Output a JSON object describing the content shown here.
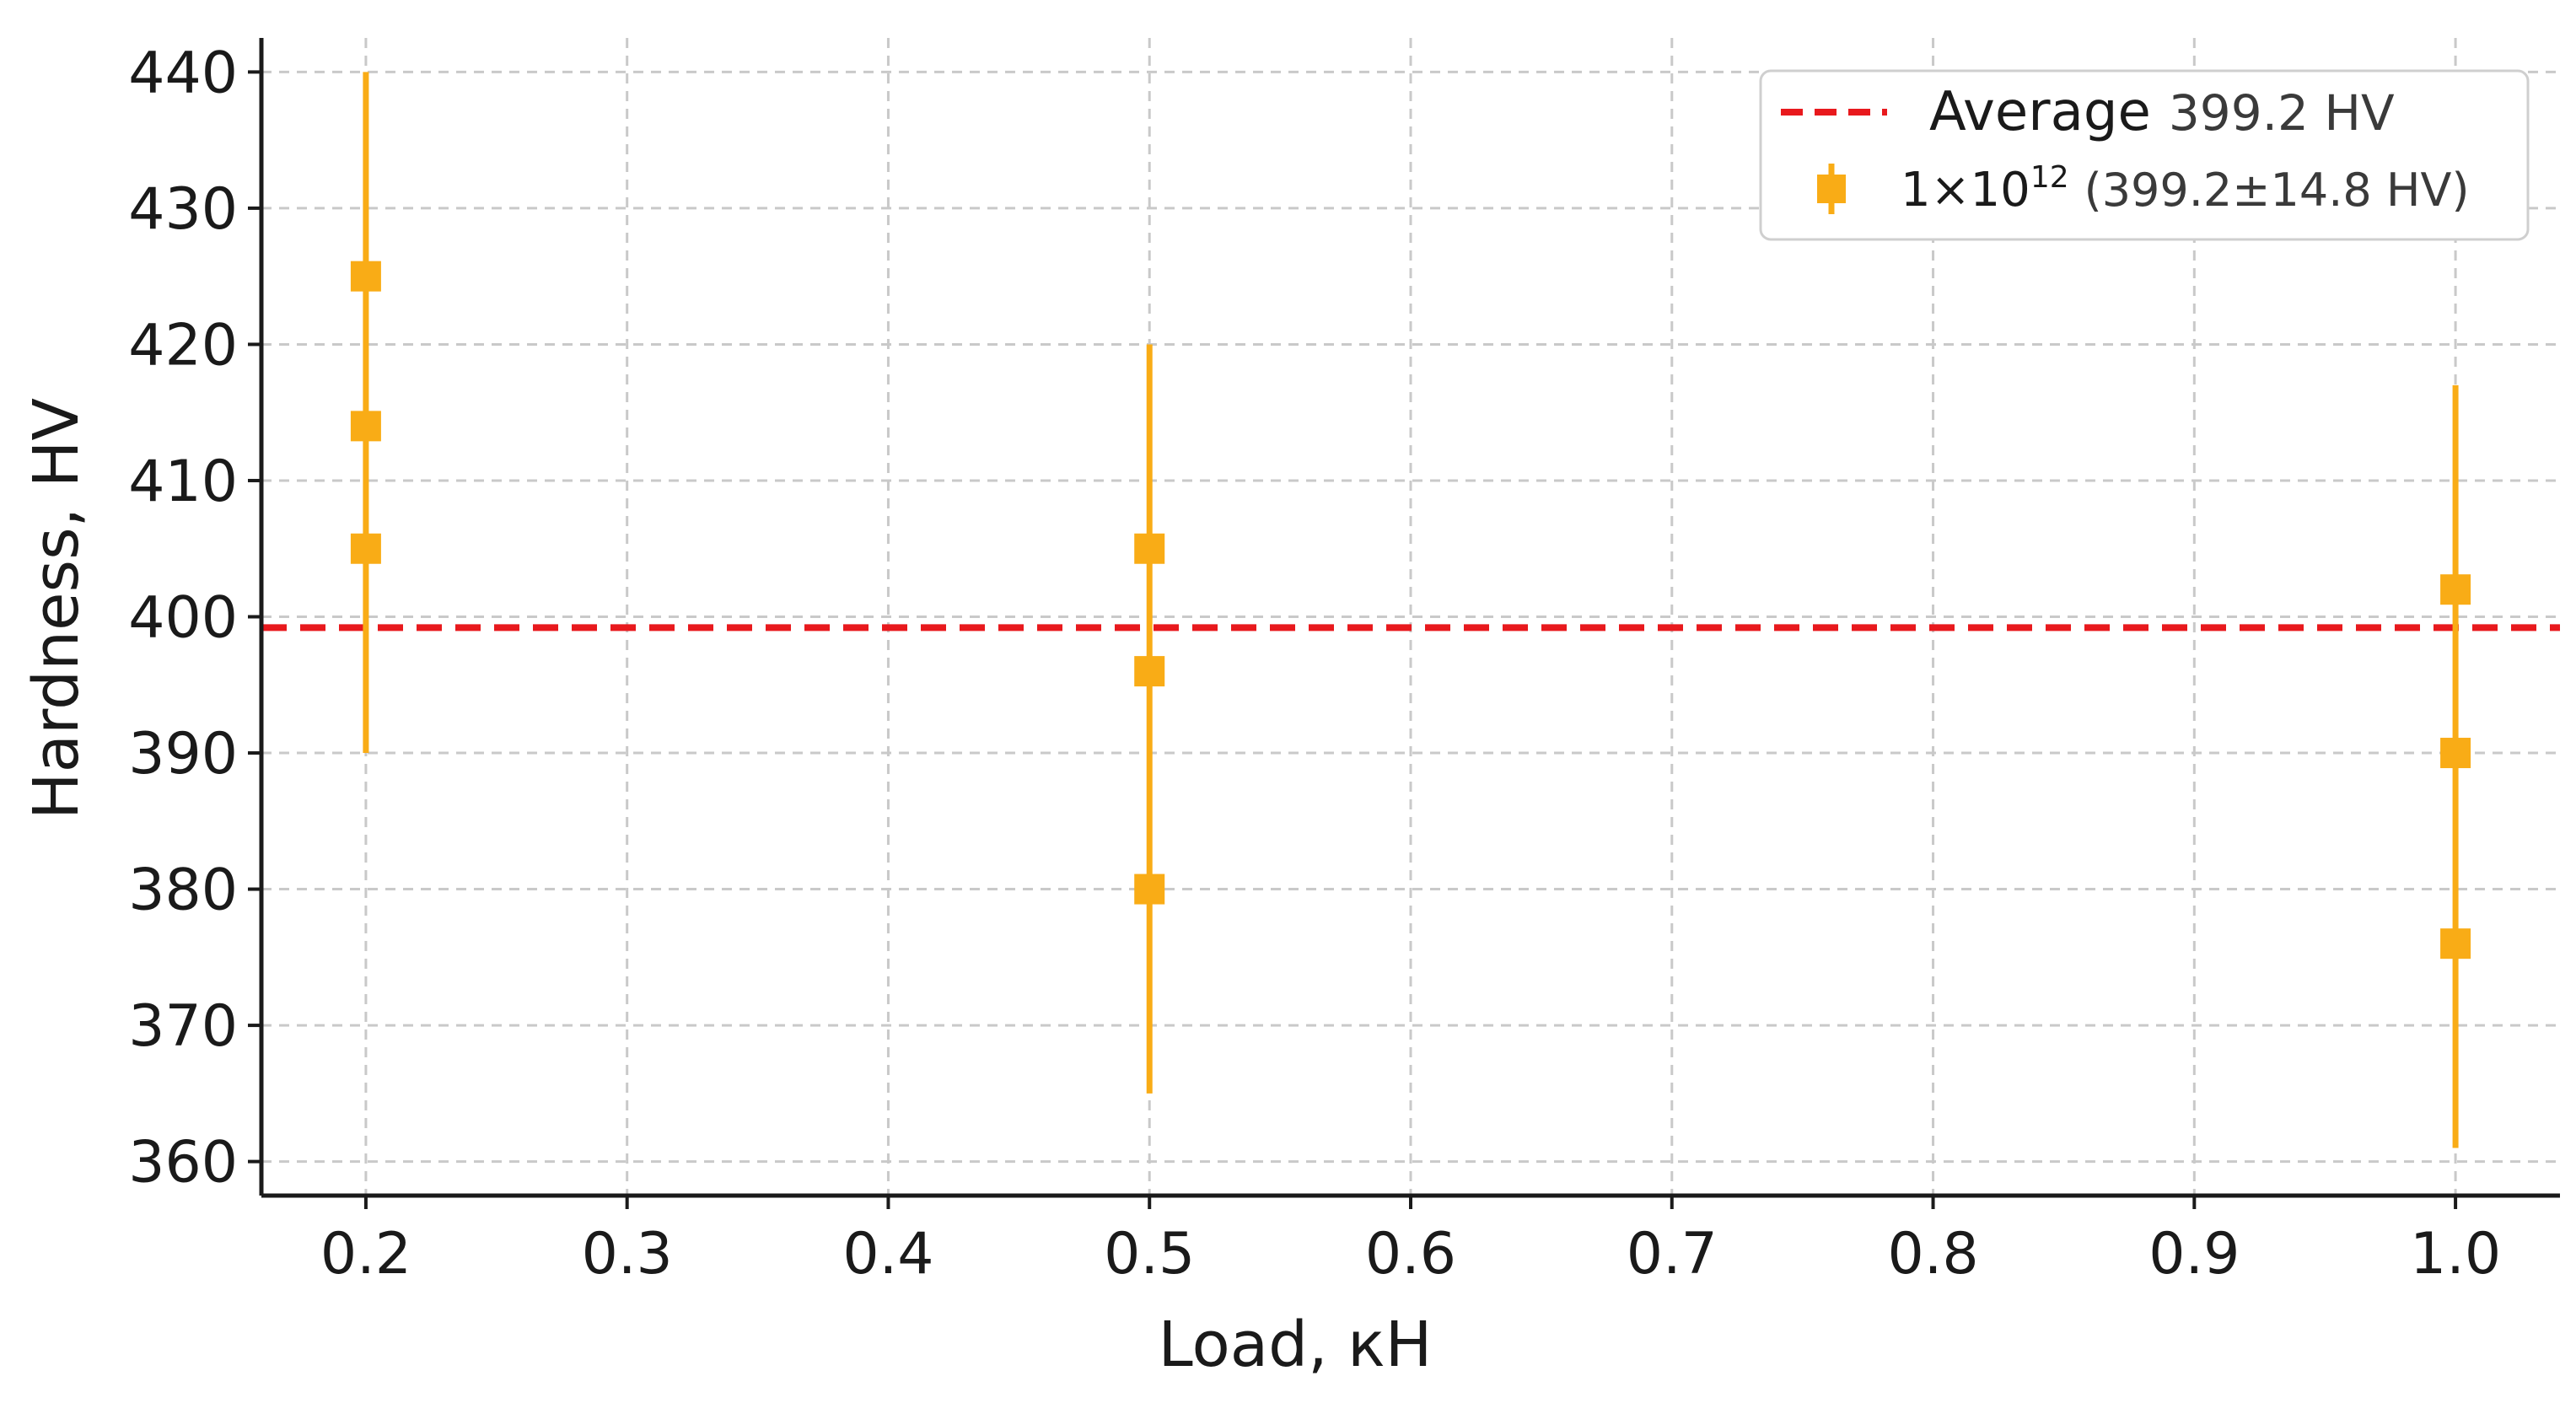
{
  "chart_data": {
    "type": "scatter",
    "xlabel": "Load, кН",
    "ylabel": "Hardness, HV",
    "xlim": [
      0.16,
      1.04
    ],
    "ylim": [
      357.5,
      442.5
    ],
    "x_ticks": [
      {
        "value": 0.2,
        "label": "0.2"
      },
      {
        "value": 0.3,
        "label": "0.3"
      },
      {
        "value": 0.4,
        "label": "0.4"
      },
      {
        "value": 0.5,
        "label": "0.5"
      },
      {
        "value": 0.6,
        "label": "0.6"
      },
      {
        "value": 0.7,
        "label": "0.7"
      },
      {
        "value": 0.8,
        "label": "0.8"
      },
      {
        "value": 0.9,
        "label": "0.9"
      },
      {
        "value": 1.0,
        "label": "1.0"
      }
    ],
    "y_ticks": [
      {
        "value": 360,
        "label": "360"
      },
      {
        "value": 370,
        "label": "370"
      },
      {
        "value": 380,
        "label": "380"
      },
      {
        "value": 390,
        "label": "390"
      },
      {
        "value": 400,
        "label": "400"
      },
      {
        "value": 410,
        "label": "410"
      },
      {
        "value": 420,
        "label": "420"
      },
      {
        "value": 430,
        "label": "430"
      },
      {
        "value": 440,
        "label": "440"
      }
    ],
    "grid": true,
    "legend_position": "top-right",
    "average_line": {
      "label": "Average",
      "value_label": "399.2 HV",
      "value": 399.2,
      "color": "#e8191d",
      "style": "dashed"
    },
    "series": [
      {
        "name_base": "1×10",
        "name_exponent": "12",
        "name_suffix": "(399.2±14.8 HV)",
        "color": "#f9ac16",
        "marker": "square",
        "points": [
          {
            "x": 0.2,
            "y": 425
          },
          {
            "x": 0.2,
            "y": 414
          },
          {
            "x": 0.2,
            "y": 405
          },
          {
            "x": 0.5,
            "y": 405
          },
          {
            "x": 0.5,
            "y": 396
          },
          {
            "x": 0.5,
            "y": 380
          },
          {
            "x": 1.0,
            "y": 402
          },
          {
            "x": 1.0,
            "y": 390
          },
          {
            "x": 1.0,
            "y": 376
          }
        ],
        "error_bars": [
          {
            "x": 0.2,
            "low": 390,
            "high": 440
          },
          {
            "x": 0.5,
            "low": 365,
            "high": 420
          },
          {
            "x": 1.0,
            "low": 361,
            "high": 417
          }
        ]
      }
    ]
  }
}
